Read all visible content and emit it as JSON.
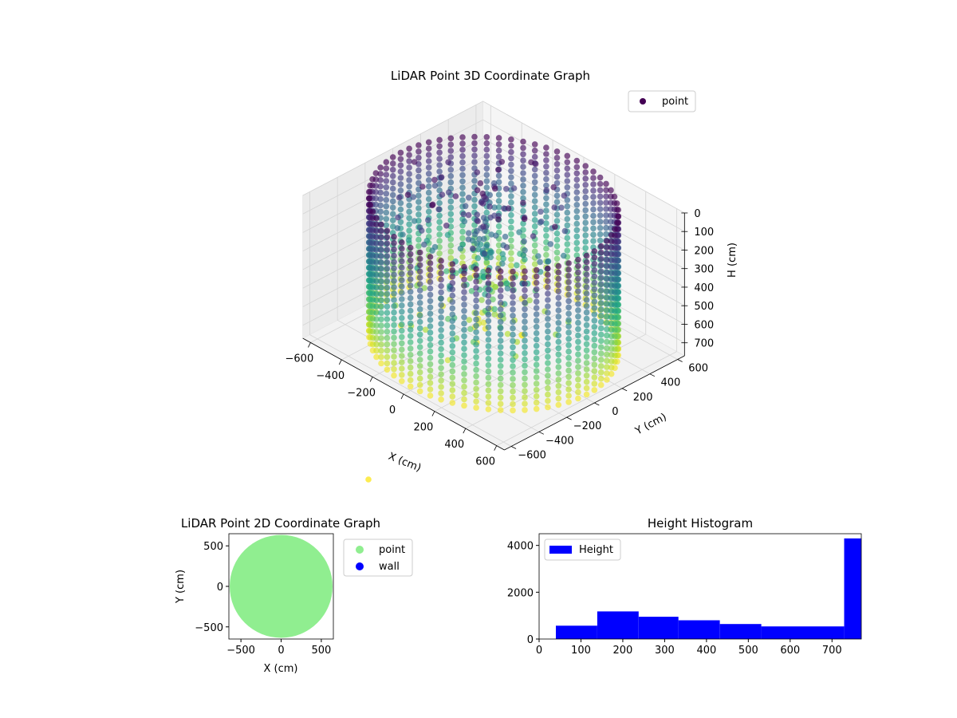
{
  "chart_data": [
    {
      "type": "scatter3d",
      "title": "LiDAR Point 3D Coordinate Graph",
      "xlabel": "X (cm)",
      "ylabel": "Y (cm)",
      "zlabel": "H (cm)",
      "xticks": [
        -600,
        -400,
        -200,
        0,
        200,
        400,
        600
      ],
      "yticks": [
        -600,
        -400,
        -200,
        0,
        200,
        400,
        600
      ],
      "zticks": [
        0,
        100,
        200,
        300,
        400,
        500,
        600,
        700
      ],
      "xlim": [
        -650,
        650
      ],
      "ylim": [
        -650,
        650
      ],
      "zlim": [
        770,
        0
      ],
      "z_inverted": true,
      "grid": true,
      "colormap": "viridis",
      "legend": {
        "position": "top-right",
        "entries": [
          "point"
        ]
      },
      "series": [
        {
          "name": "point",
          "marker_color": "#440154",
          "description_shape": "cylindrical wall of points, radius approx 600 cm, heights 0 to 760 cm, with scattered interior points"
        }
      ]
    },
    {
      "type": "scatter",
      "title": "LiDAR Point 2D Coordinate Graph",
      "xlabel": "X (cm)",
      "ylabel": "Y (cm)",
      "xticks": [
        -500,
        0,
        500
      ],
      "yticks": [
        -500,
        0,
        500
      ],
      "xlim": [
        -650,
        650
      ],
      "ylim": [
        -650,
        650
      ],
      "legend": {
        "position": "outside-right",
        "entries": [
          "point",
          "wall"
        ]
      },
      "series": [
        {
          "name": "point",
          "color": "#90ee90",
          "radius": 640
        },
        {
          "name": "wall",
          "color": "#0000ff"
        }
      ]
    },
    {
      "type": "histogram",
      "title": "Height Histogram",
      "xticks": [
        0,
        100,
        200,
        300,
        400,
        500,
        600,
        700
      ],
      "yticks": [
        0,
        2000,
        4000
      ],
      "xlim": [
        0,
        770
      ],
      "ylim": [
        0,
        4500
      ],
      "legend": {
        "position": "top-left",
        "entries": [
          "Height"
        ]
      },
      "bar_color": "#0000ff",
      "bins": [
        {
          "from": 40,
          "to": 139,
          "count": 570
        },
        {
          "from": 139,
          "to": 238,
          "count": 1180
        },
        {
          "from": 238,
          "to": 333,
          "count": 950
        },
        {
          "from": 333,
          "to": 432,
          "count": 800
        },
        {
          "from": 432,
          "to": 531,
          "count": 640
        },
        {
          "from": 531,
          "to": 630,
          "count": 540
        },
        {
          "from": 630,
          "to": 729,
          "count": 540
        },
        {
          "from": 729,
          "to": 770,
          "count": 4300
        }
      ]
    }
  ]
}
